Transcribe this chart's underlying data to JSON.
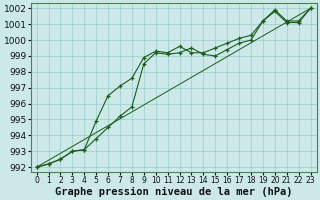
{
  "title": "",
  "xlabel": "Graphe pression niveau de la mer (hPa)",
  "bg_color": "#cce8e8",
  "grid_color": "#99cccc",
  "line_color": "#1a5c1a",
  "xlim": [
    -0.5,
    23.5
  ],
  "ylim": [
    991.7,
    1002.3
  ],
  "yticks": [
    992,
    993,
    994,
    995,
    996,
    997,
    998,
    999,
    1000,
    1001,
    1002
  ],
  "xticks": [
    0,
    1,
    2,
    3,
    4,
    5,
    6,
    7,
    8,
    9,
    10,
    11,
    12,
    13,
    14,
    15,
    16,
    17,
    18,
    19,
    20,
    21,
    22,
    23
  ],
  "line1_x": [
    0,
    1,
    2,
    3,
    4,
    5,
    6,
    7,
    8,
    9,
    10,
    11,
    12,
    13,
    14,
    15,
    16,
    17,
    18,
    19,
    20,
    21,
    22,
    23
  ],
  "line1_y": [
    992.0,
    992.2,
    992.5,
    993.0,
    993.1,
    993.8,
    994.5,
    995.2,
    995.8,
    998.5,
    999.2,
    999.1,
    999.2,
    999.5,
    999.1,
    999.0,
    999.4,
    999.8,
    1000.0,
    1001.2,
    1001.8,
    1001.1,
    1001.1,
    1002.0
  ],
  "line2_x": [
    0,
    1,
    2,
    3,
    4,
    5,
    6,
    7,
    8,
    9,
    10,
    11,
    12,
    13,
    14,
    15,
    16,
    17,
    18,
    19,
    20,
    21,
    22,
    23
  ],
  "line2_y": [
    992.0,
    992.2,
    992.5,
    993.0,
    993.1,
    994.9,
    996.5,
    997.1,
    997.6,
    998.9,
    999.3,
    999.2,
    999.6,
    999.2,
    999.2,
    999.5,
    999.8,
    1000.1,
    1000.3,
    1001.2,
    1001.9,
    1001.2,
    1001.2,
    1002.0
  ],
  "line3_x": [
    0,
    23
  ],
  "line3_y": [
    992.0,
    1002.0
  ],
  "xlabel_fontsize": 7.5,
  "tick_fontsize": 6.5
}
